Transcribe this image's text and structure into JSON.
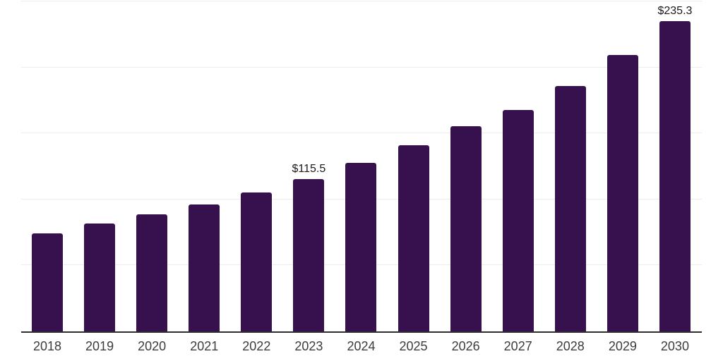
{
  "chart_data": {
    "type": "bar",
    "title": "",
    "categories": [
      "2018",
      "2019",
      "2020",
      "2021",
      "2022",
      "2023",
      "2024",
      "2025",
      "2026",
      "2027",
      "2028",
      "2029",
      "2030"
    ],
    "values": [
      74.1,
      82.0,
      88.9,
      96.3,
      105.2,
      115.5,
      127.5,
      141.2,
      155.7,
      167.8,
      185.9,
      209.2,
      235.3
    ],
    "annotations": [
      {
        "x": "2023",
        "text": "$115.5"
      },
      {
        "x": "2030",
        "text": "$235.3"
      }
    ],
    "xlabel": "",
    "ylabel": "",
    "ylim": [
      0,
      250
    ],
    "gridline_step": 50,
    "grid": "horizontal-only",
    "y_tick_labels_visible": false,
    "legend": "none",
    "value_prefix": "$"
  },
  "style": {
    "bar_color": "#36114E",
    "gridline_color": "#ededed",
    "axis_color": "#2e2e2e",
    "value_label_color": "#1a1a1a",
    "x_tick_label_color": "#3c3c3c",
    "background_color": "#ffffff"
  }
}
